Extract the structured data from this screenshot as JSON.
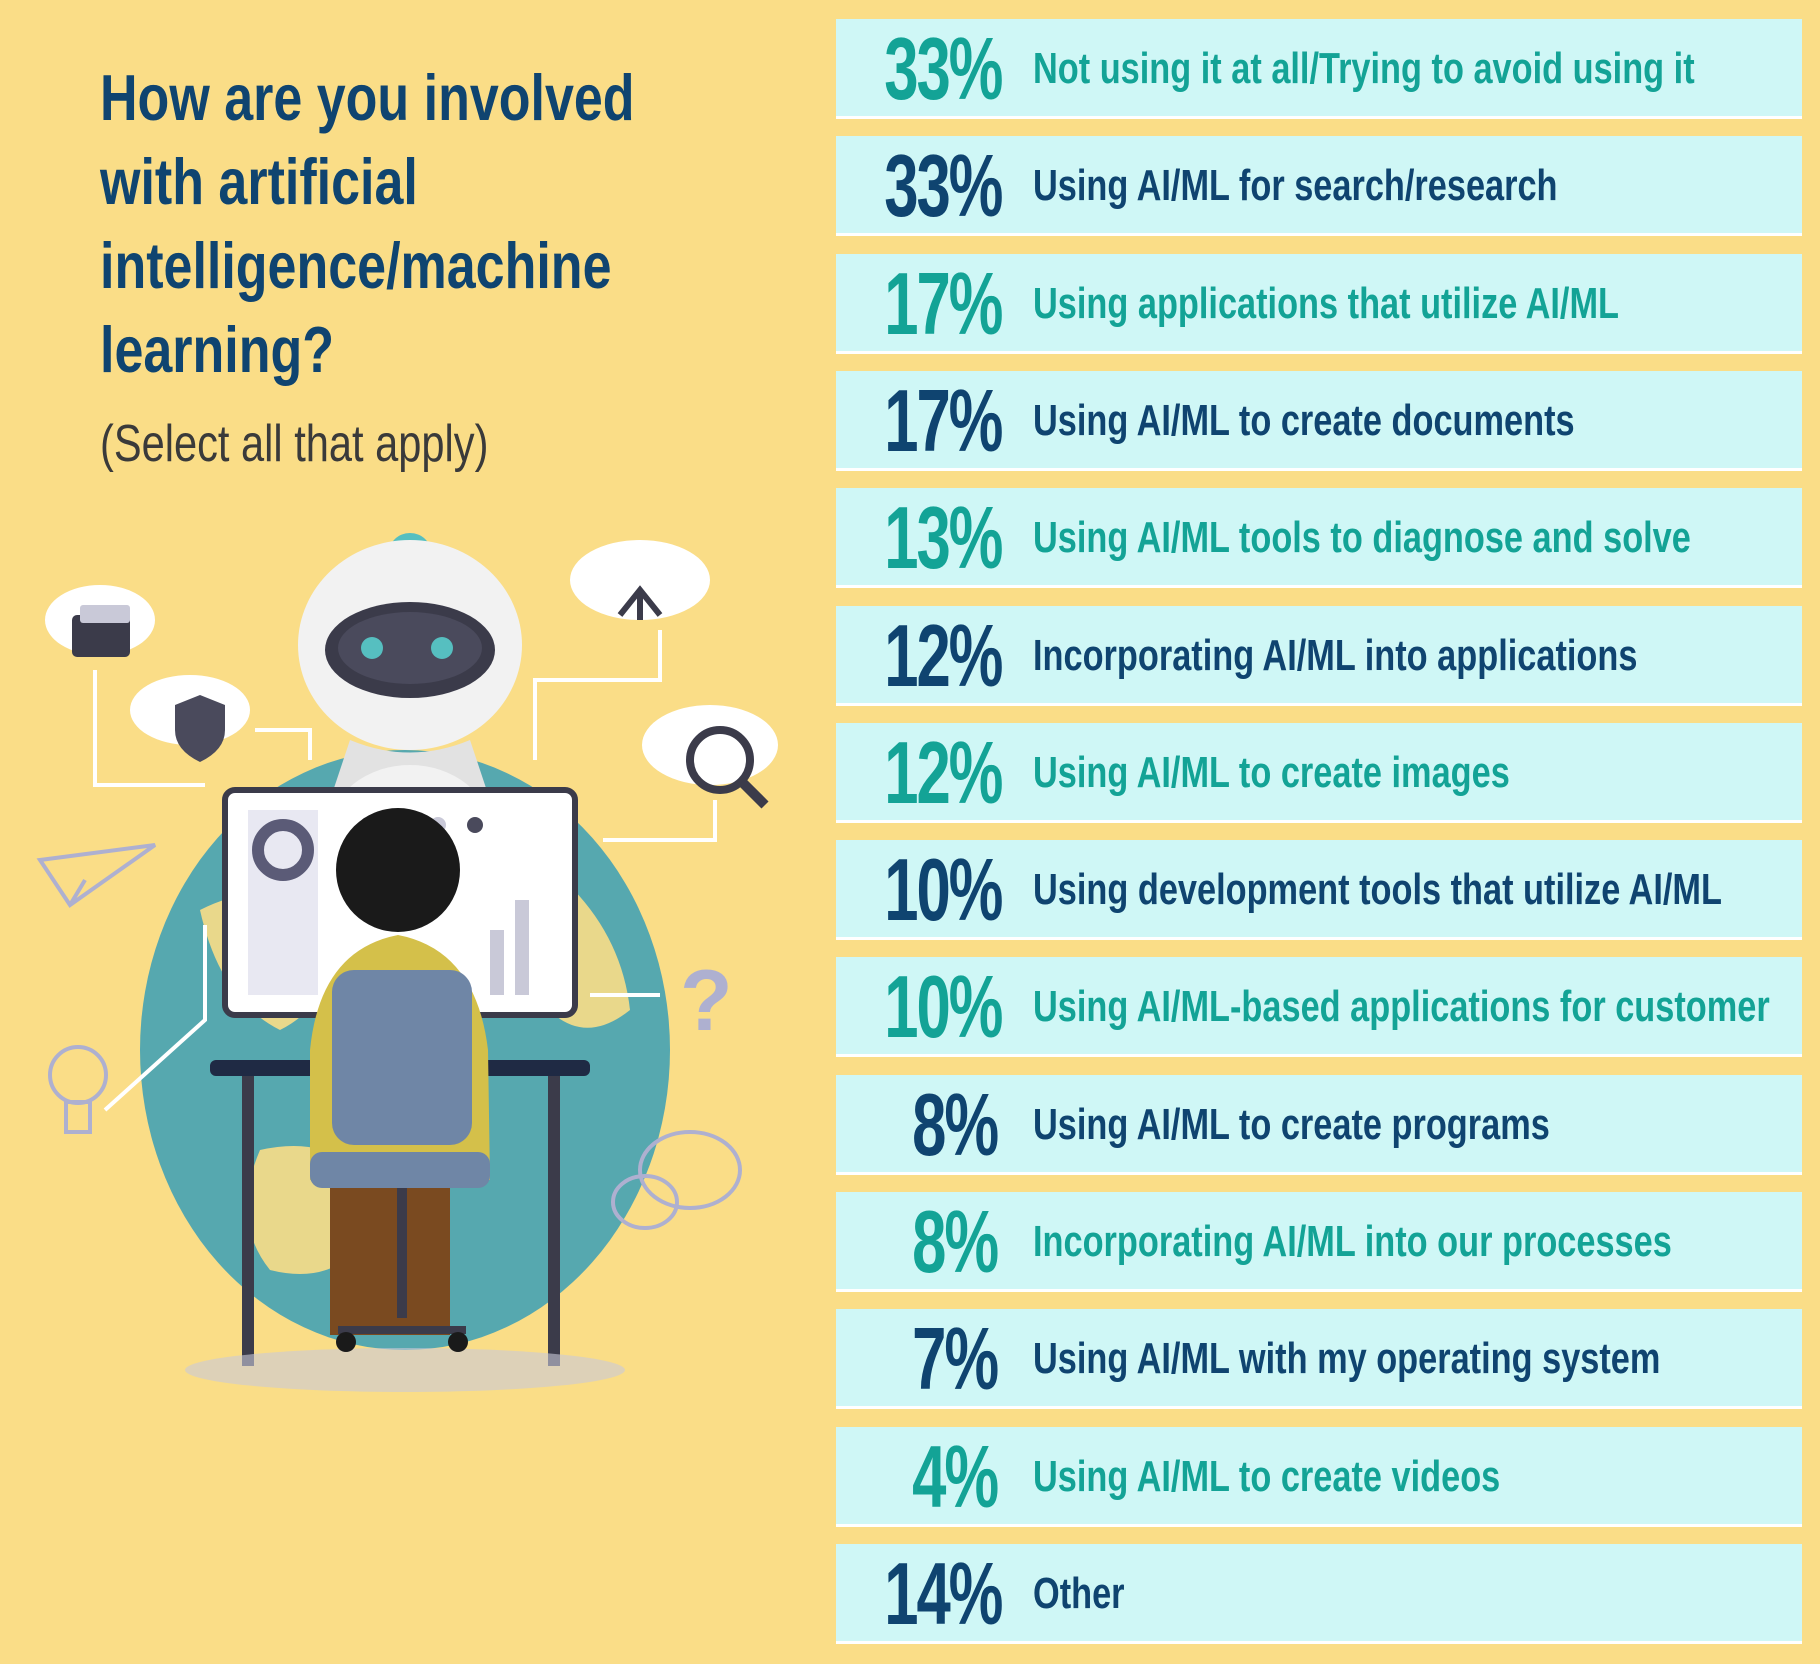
{
  "title": "How are you involved with artificial intelligence/machine learning?",
  "subtitle": "(Select all that apply)",
  "colors": {
    "background": "#FADD87",
    "row_bg": "#CFF7F6",
    "teal": "#13A396",
    "navy": "#0F4470"
  },
  "chart_data": {
    "type": "table",
    "title": "How are you involved with artificial intelligence/machine learning?",
    "subtitle": "(Select all that apply)",
    "unit": "%",
    "rows": [
      {
        "value": 33,
        "display": "33%",
        "label": "Not using it at all/Trying to avoid using it",
        "color": "teal"
      },
      {
        "value": 33,
        "display": "33%",
        "label": "Using AI/ML for search/research",
        "color": "navy"
      },
      {
        "value": 17,
        "display": "17%",
        "label": "Using applications that utilize AI/ML",
        "color": "teal"
      },
      {
        "value": 17,
        "display": "17%",
        "label": "Using AI/ML to create documents",
        "color": "navy"
      },
      {
        "value": 13,
        "display": "13%",
        "label": "Using AI/ML tools to diagnose and solve",
        "color": "teal"
      },
      {
        "value": 12,
        "display": "12%",
        "label": "Incorporating AI/ML into applications",
        "color": "navy"
      },
      {
        "value": 12,
        "display": "12%",
        "label": "Using AI/ML to create images",
        "color": "teal"
      },
      {
        "value": 10,
        "display": "10%",
        "label": "Using development tools that utilize AI/ML",
        "color": "navy"
      },
      {
        "value": 10,
        "display": "10%",
        "label": "Using AI/ML-based applications for customer",
        "color": "teal"
      },
      {
        "value": 8,
        "display": "8%",
        "label": "Using AI/ML to create programs",
        "color": "navy"
      },
      {
        "value": 8,
        "display": "8%",
        "label": "Incorporating AI/ML into our processes",
        "color": "teal"
      },
      {
        "value": 7,
        "display": "7%",
        "label": "Using AI/ML with my operating system",
        "color": "navy"
      },
      {
        "value": 4,
        "display": "4%",
        "label": "Using AI/ML to create videos",
        "color": "teal"
      },
      {
        "value": 14,
        "display": "14%",
        "label": "Other",
        "color": "navy"
      }
    ]
  }
}
